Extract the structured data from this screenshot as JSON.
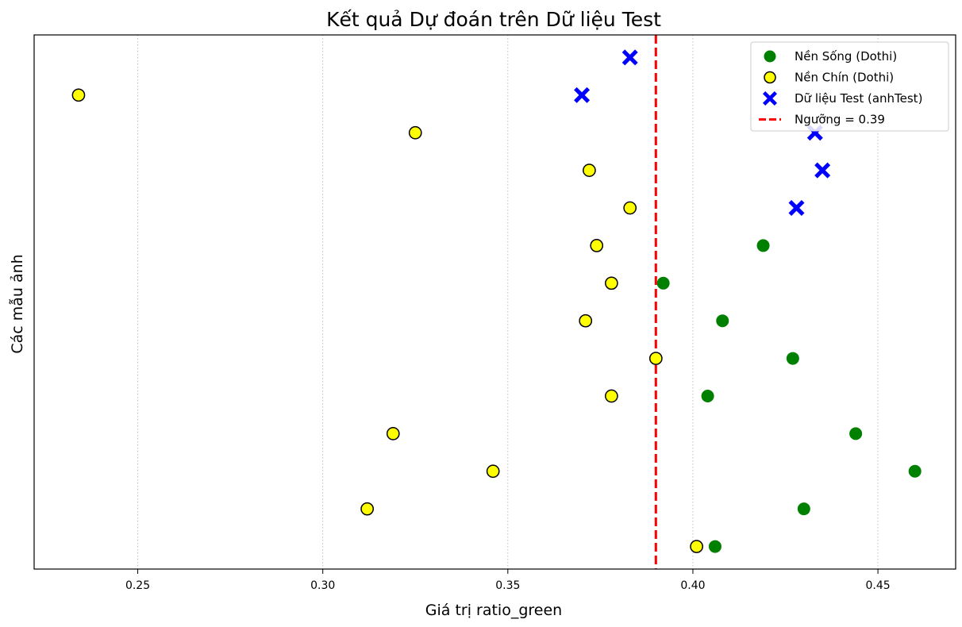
{
  "chart_data": {
    "type": "scatter",
    "title": "Kết quả Dự đoán trên Dữ liệu Test",
    "xlabel": "Giá trị ratio_green",
    "ylabel": "Các mẫu ảnh",
    "xlim": [
      0.222,
      0.471
    ],
    "ylim": [
      -0.6,
      13.6
    ],
    "xticks": [
      "0.25",
      "0.30",
      "0.35",
      "0.40",
      "0.45"
    ],
    "xtick_values": [
      0.25,
      0.3,
      0.35,
      0.4,
      0.45
    ],
    "grid": "x-dotted",
    "legend_position": "top-right",
    "threshold": {
      "label": "Ngưỡng = 0.39",
      "value": 0.39,
      "color": "#ff0000"
    },
    "series": [
      {
        "name": "Nền Sống (Dothi)",
        "marker": "circle",
        "color": "#008000",
        "points": [
          {
            "x": 0.406,
            "y": 0
          },
          {
            "x": 0.43,
            "y": 1
          },
          {
            "x": 0.46,
            "y": 2
          },
          {
            "x": 0.444,
            "y": 3
          },
          {
            "x": 0.404,
            "y": 4
          },
          {
            "x": 0.427,
            "y": 5
          },
          {
            "x": 0.408,
            "y": 6
          },
          {
            "x": 0.392,
            "y": 7
          },
          {
            "x": 0.419,
            "y": 8
          }
        ]
      },
      {
        "name": "Nền Chín (Dothi)",
        "marker": "circle",
        "color": "#ffff00",
        "points": [
          {
            "x": 0.401,
            "y": 0
          },
          {
            "x": 0.312,
            "y": 1
          },
          {
            "x": 0.346,
            "y": 2
          },
          {
            "x": 0.319,
            "y": 3
          },
          {
            "x": 0.378,
            "y": 4
          },
          {
            "x": 0.39,
            "y": 5
          },
          {
            "x": 0.371,
            "y": 6
          },
          {
            "x": 0.378,
            "y": 7
          },
          {
            "x": 0.374,
            "y": 8
          },
          {
            "x": 0.383,
            "y": 9
          },
          {
            "x": 0.372,
            "y": 10
          },
          {
            "x": 0.325,
            "y": 11
          },
          {
            "x": 0.234,
            "y": 12
          }
        ]
      },
      {
        "name": "Dữ liệu Test (anhTest)",
        "marker": "X",
        "color": "#0000ff",
        "points": [
          {
            "x": 0.383,
            "y": 13
          },
          {
            "x": 0.37,
            "y": 12
          },
          {
            "x": 0.433,
            "y": 11
          },
          {
            "x": 0.435,
            "y": 10
          },
          {
            "x": 0.428,
            "y": 9
          }
        ]
      }
    ]
  }
}
